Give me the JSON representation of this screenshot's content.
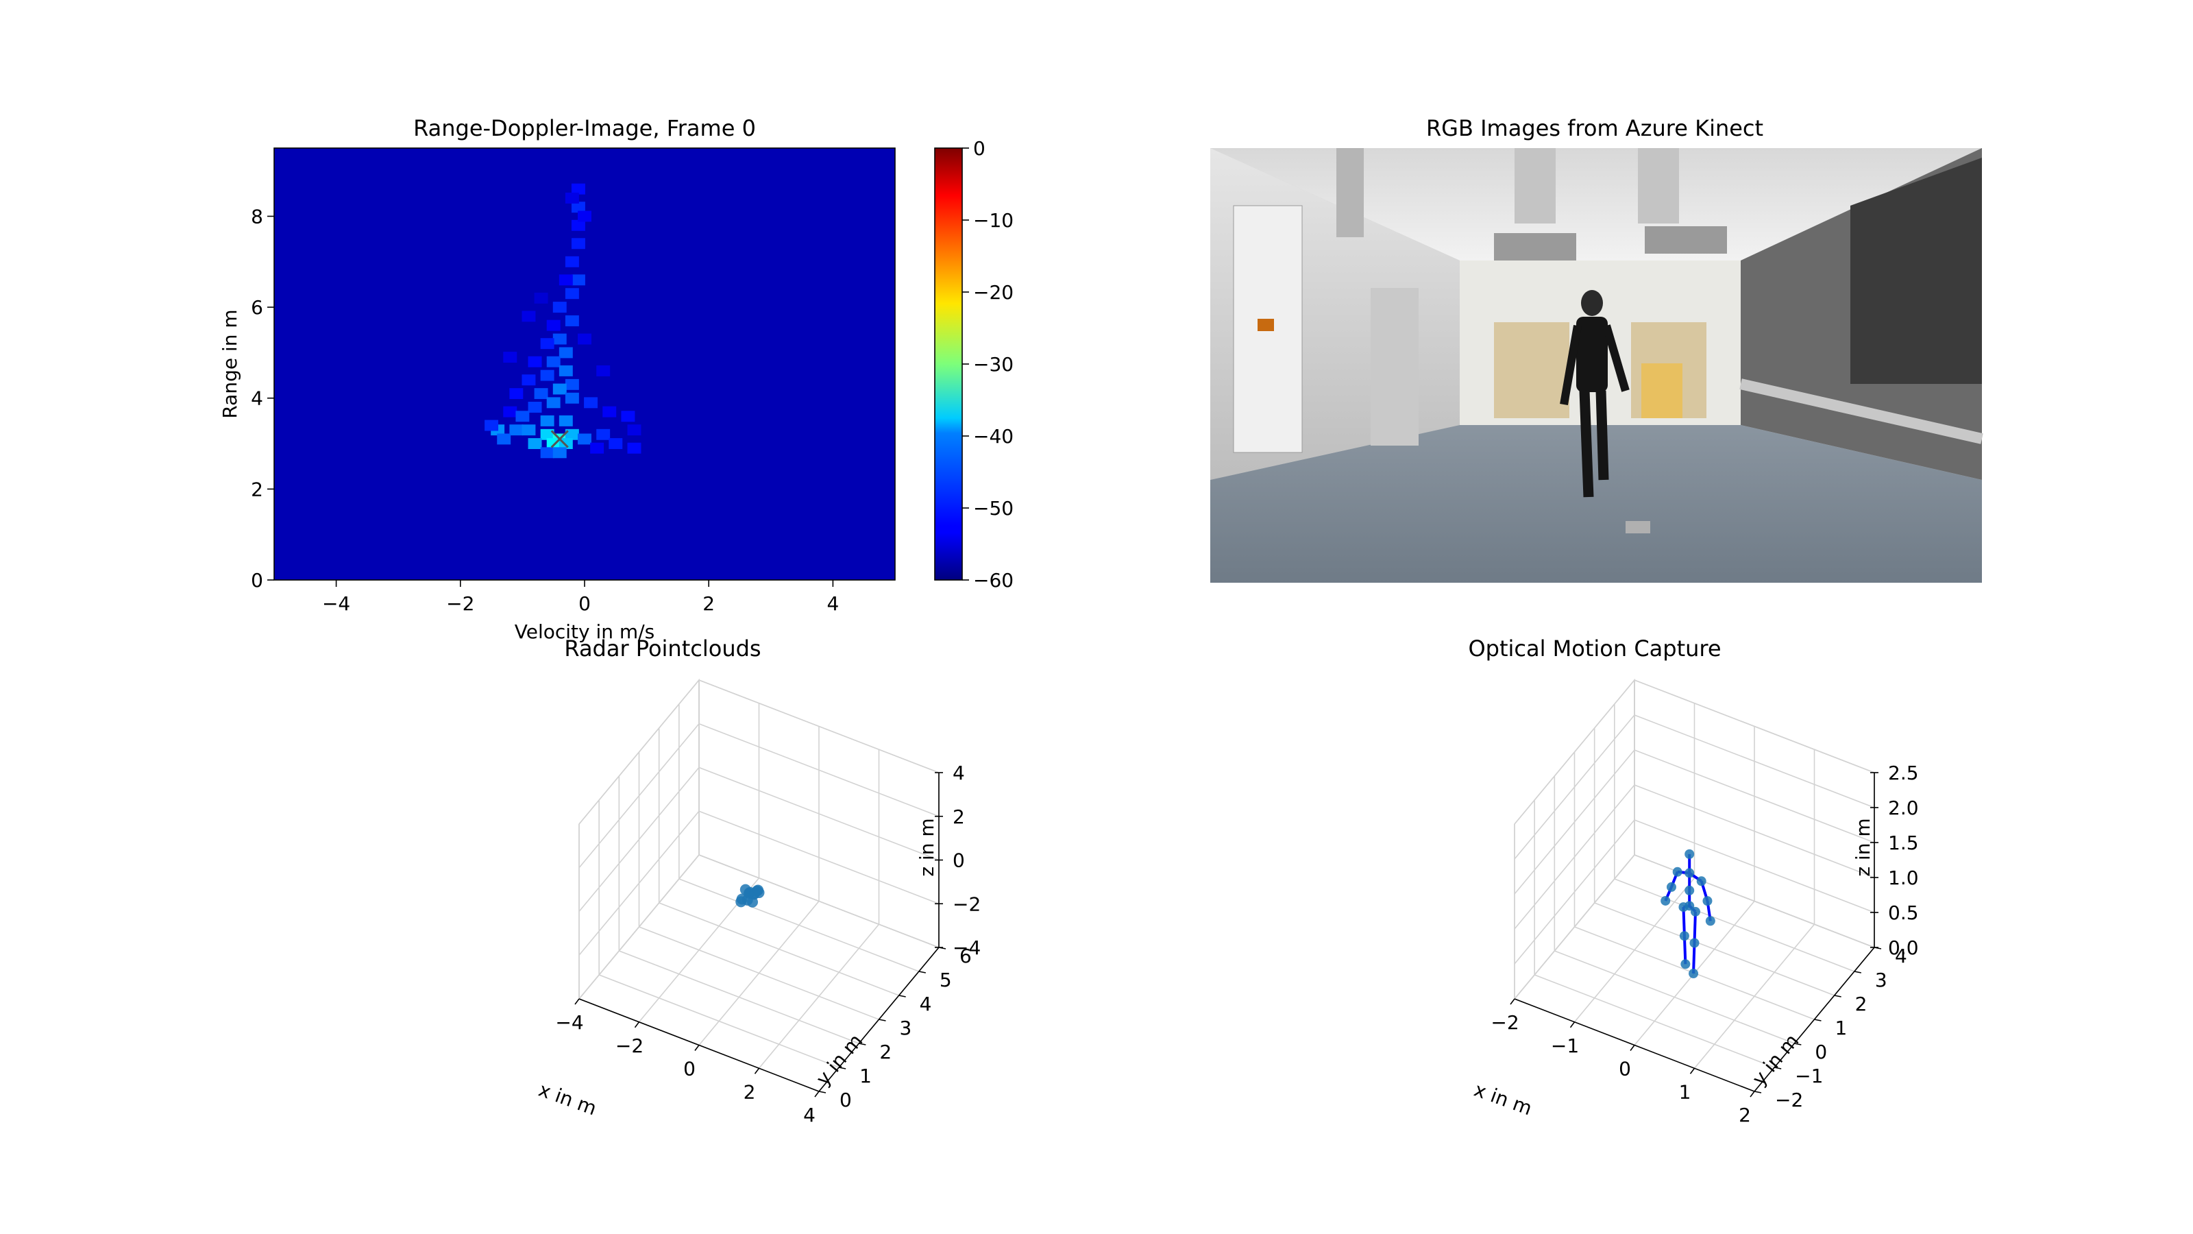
{
  "figure": {
    "background": "#ffffff"
  },
  "chart_data": [
    {
      "type": "heatmap",
      "title": "Range-Doppler-Image, Frame 0",
      "xlabel": "Velocity in m/s",
      "ylabel": "Range in m",
      "xlim": [
        -5,
        5
      ],
      "ylim": [
        0,
        9.5
      ],
      "xticks": [
        -4,
        -2,
        0,
        2,
        4
      ],
      "yticks": [
        0,
        2,
        4,
        6,
        8
      ],
      "colormap": "jet",
      "colorbar": {
        "range": [
          -60,
          0
        ],
        "ticks": [
          0,
          -10,
          -20,
          -30,
          -40,
          -50,
          -60
        ]
      },
      "background_value": -57,
      "target_marker": {
        "shape": "x",
        "velocity": -0.4,
        "range": 3.1
      },
      "cells_units": "[velocity m/s, range m, value dB]",
      "cells": [
        [
          -0.1,
          8.6,
          -52
        ],
        [
          -0.1,
          8.2,
          -50
        ],
        [
          -0.1,
          7.8,
          -52
        ],
        [
          -0.1,
          7.4,
          -51
        ],
        [
          0.0,
          8.0,
          -53
        ],
        [
          -0.2,
          8.4,
          -54
        ],
        [
          -0.2,
          7.0,
          -51
        ],
        [
          -0.1,
          6.6,
          -49
        ],
        [
          -0.3,
          6.6,
          -53
        ],
        [
          -0.2,
          6.3,
          -50
        ],
        [
          -0.4,
          6.0,
          -50
        ],
        [
          -0.2,
          5.7,
          -49
        ],
        [
          -0.5,
          5.6,
          -53
        ],
        [
          -0.4,
          5.3,
          -48
        ],
        [
          -0.6,
          5.2,
          -51
        ],
        [
          -0.3,
          5.0,
          -47
        ],
        [
          -0.5,
          4.8,
          -48
        ],
        [
          -0.8,
          4.8,
          -52
        ],
        [
          -0.3,
          4.6,
          -46
        ],
        [
          -0.6,
          4.5,
          -49
        ],
        [
          -0.9,
          4.4,
          -51
        ],
        [
          -0.2,
          4.3,
          -48
        ],
        [
          -0.4,
          4.2,
          -45
        ],
        [
          -0.7,
          4.1,
          -48
        ],
        [
          -1.1,
          4.1,
          -52
        ],
        [
          -0.2,
          4.0,
          -47
        ],
        [
          -0.5,
          3.9,
          -46
        ],
        [
          -0.8,
          3.8,
          -49
        ],
        [
          -1.2,
          3.7,
          -53
        ],
        [
          0.1,
          3.9,
          -50
        ],
        [
          0.4,
          3.7,
          -53
        ],
        [
          0.7,
          3.6,
          -52
        ],
        [
          0.8,
          3.3,
          -54
        ],
        [
          -1.1,
          3.3,
          -46
        ],
        [
          -1.4,
          3.3,
          -44
        ],
        [
          -0.9,
          3.3,
          -45
        ],
        [
          -0.6,
          3.2,
          -40
        ],
        [
          -0.4,
          3.1,
          -36
        ],
        [
          -0.2,
          3.2,
          -42
        ],
        [
          0.0,
          3.1,
          -47
        ],
        [
          0.3,
          3.2,
          -50
        ],
        [
          -1.3,
          3.1,
          -47
        ],
        [
          -0.8,
          3.0,
          -43
        ],
        [
          -0.5,
          3.0,
          -38
        ],
        [
          -0.3,
          3.0,
          -41
        ],
        [
          0.5,
          3.0,
          -51
        ],
        [
          0.8,
          2.9,
          -52
        ],
        [
          -1.0,
          3.6,
          -48
        ],
        [
          -0.6,
          3.5,
          -45
        ],
        [
          -0.3,
          3.5,
          -45
        ],
        [
          -1.5,
          3.4,
          -50
        ],
        [
          -0.6,
          2.8,
          -48
        ],
        [
          -0.4,
          2.8,
          -46
        ],
        [
          0.2,
          2.9,
          -53
        ],
        [
          -0.9,
          5.8,
          -54
        ],
        [
          -1.2,
          4.9,
          -54
        ],
        [
          0.3,
          4.6,
          -54
        ],
        [
          -0.7,
          6.2,
          -55
        ],
        [
          0.0,
          5.3,
          -54
        ]
      ]
    },
    {
      "type": "image",
      "title": "RGB Images from Azure Kinect"
    },
    {
      "type": "scatter3d",
      "title": "Radar Pointclouds",
      "xlabel": "x in m",
      "ylabel": "y in m",
      "zlabel": "z in m",
      "xlim": [
        -4,
        4
      ],
      "ylim": [
        0,
        6
      ],
      "zlim": [
        -4,
        4
      ],
      "xticks": [
        -4,
        -2,
        0,
        2,
        4
      ],
      "yticks": [
        0,
        1,
        2,
        3,
        4,
        5,
        6
      ],
      "zticks": [
        -4,
        -2,
        0,
        2,
        4
      ],
      "point_color": "#1f77b4",
      "points": [
        [
          -0.6,
          3.4,
          -1.1
        ],
        [
          -0.5,
          3.3,
          -0.9
        ],
        [
          -0.4,
          3.5,
          -1.0
        ],
        [
          -0.7,
          3.2,
          -1.2
        ],
        [
          -0.3,
          3.4,
          -0.8
        ],
        [
          -0.55,
          3.6,
          -1.3
        ],
        [
          -0.45,
          3.1,
          -1.0
        ],
        [
          -0.65,
          3.3,
          -0.85
        ],
        [
          -0.35,
          3.2,
          -1.15
        ],
        [
          -0.5,
          3.5,
          -1.2
        ],
        [
          -0.2,
          3.3,
          -0.75
        ],
        [
          -0.6,
          3.0,
          -1.05
        ]
      ]
    },
    {
      "type": "skeleton3d",
      "title": "Optical Motion Capture",
      "xlabel": "x in m",
      "ylabel": "y in m",
      "zlabel": "z in m",
      "xlim": [
        -2,
        2
      ],
      "ylim": [
        -2,
        4
      ],
      "zlim": [
        0,
        2.5
      ],
      "xticks": [
        -2,
        -1,
        0,
        1,
        2
      ],
      "yticks": [
        -2,
        -1,
        0,
        1,
        2,
        3,
        4
      ],
      "zticks": [
        0.0,
        0.5,
        1.0,
        1.5,
        2.0,
        2.5
      ],
      "joint_color": "#1f77b4",
      "bone_color": "#0000ff",
      "joints": {
        "head": [
          -0.05,
          0.9,
          1.72
        ],
        "neck": [
          -0.05,
          0.9,
          1.45
        ],
        "l_shoulder": [
          -0.25,
          0.9,
          1.4
        ],
        "r_shoulder": [
          0.15,
          0.9,
          1.4
        ],
        "l_elbow": [
          -0.35,
          0.9,
          1.15
        ],
        "r_elbow": [
          0.25,
          0.9,
          1.15
        ],
        "l_wrist": [
          -0.45,
          0.9,
          0.92
        ],
        "r_wrist": [
          0.3,
          0.9,
          0.88
        ],
        "spine": [
          -0.05,
          0.9,
          1.2
        ],
        "pelvis": [
          -0.05,
          0.9,
          0.98
        ],
        "l_hip": [
          -0.15,
          0.9,
          0.93
        ],
        "r_hip": [
          0.05,
          0.9,
          0.93
        ],
        "l_knee": [
          -0.15,
          0.95,
          0.5
        ],
        "r_knee": [
          0.05,
          0.85,
          0.5
        ],
        "l_ankle": [
          -0.15,
          1.0,
          0.08
        ],
        "r_ankle": [
          0.05,
          0.8,
          0.08
        ]
      },
      "bones": [
        [
          "head",
          "neck"
        ],
        [
          "neck",
          "l_shoulder"
        ],
        [
          "neck",
          "r_shoulder"
        ],
        [
          "l_shoulder",
          "l_elbow"
        ],
        [
          "l_elbow",
          "l_wrist"
        ],
        [
          "r_shoulder",
          "r_elbow"
        ],
        [
          "r_elbow",
          "r_wrist"
        ],
        [
          "neck",
          "spine"
        ],
        [
          "spine",
          "pelvis"
        ],
        [
          "pelvis",
          "l_hip"
        ],
        [
          "pelvis",
          "r_hip"
        ],
        [
          "l_hip",
          "l_knee"
        ],
        [
          "l_knee",
          "l_ankle"
        ],
        [
          "r_hip",
          "r_knee"
        ],
        [
          "r_knee",
          "r_ankle"
        ]
      ]
    }
  ]
}
